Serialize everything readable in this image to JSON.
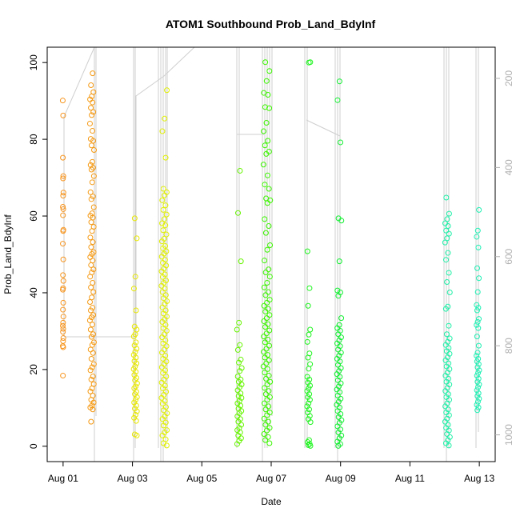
{
  "chart_data": {
    "type": "scatter",
    "title": "ATOM1 Southbound Prob_Land_BdyInf",
    "xlabel": "Date",
    "ylabel": "Prob_Land_BdyInf",
    "x_axis_type": "date",
    "x_ticks": [
      "Aug 01",
      "Aug 03",
      "Aug 05",
      "Aug 07",
      "Aug 09",
      "Aug 11",
      "Aug 13"
    ],
    "x_tick_values": [
      "2021-08-01",
      "2021-08-03",
      "2021-08-05",
      "2021-08-07",
      "2021-08-09",
      "2021-08-11",
      "2021-08-13"
    ],
    "xlim": [
      "2021-07-31T13:00",
      "2021-08-13T11:00"
    ],
    "ylim": [
      -4,
      104
    ],
    "y_ticks": [
      0,
      20,
      40,
      60,
      80,
      100
    ],
    "y_right_label": "",
    "y_right_ticks": [
      200,
      400,
      600,
      800,
      1000
    ],
    "y_right_lim": [
      1060,
      130
    ],
    "y_right_reversed": true,
    "y_right_color": "#b0b0b0",
    "grid": false,
    "legend": "none",
    "marker": "open-circle",
    "series": [
      {
        "color": "#f7941d",
        "x_center": "2021-08-01T00:00",
        "spread_days": 0.01,
        "values": [
          90.1,
          86.2,
          75.2,
          70.4,
          69.8,
          66.1,
          65.3,
          62.4,
          61.8,
          60.2,
          56.4,
          56.1,
          52.8,
          48.7,
          44.6,
          43.1,
          41.2,
          40.8,
          37.4,
          35.6,
          33.8,
          32.2,
          31.4,
          30.6,
          29.8,
          28.2,
          27.4,
          26.1,
          25.8,
          18.4
        ]
      },
      {
        "color": "#f59a14",
        "x_center": "2021-08-01T20:00",
        "spread_days": 0.06,
        "values": [
          97.2,
          94.1,
          92.3,
          91.2,
          90.4,
          89.6,
          88.2,
          87.1,
          86.3,
          84.1,
          82.2,
          80.1,
          79.6,
          78.4,
          77.2,
          74.1,
          73.3,
          72.6,
          72.1,
          70.4,
          68.8,
          66.2,
          65.1,
          64.4,
          62.3,
          60.7,
          60.1,
          59.6,
          58.4,
          57.2,
          56.1,
          54.4,
          53.2,
          51.9,
          50.6,
          50.1,
          49.3,
          48.4,
          47.2,
          46.1,
          45.3,
          44.2,
          42.6,
          41.4,
          40.2,
          38.8,
          37.6,
          36.1,
          35.4,
          34.2,
          33.6,
          32.8,
          31.7,
          30.4,
          29.2,
          28.5,
          27.1,
          26.4,
          25.2,
          24.3,
          22.8,
          21.4,
          20.6,
          19.8,
          18.2,
          17.4,
          16.2,
          15.1,
          14.3,
          13.2,
          12.1,
          11.4,
          10.6,
          10.1,
          9.6,
          6.4
        ]
      },
      {
        "color": "#e8e800",
        "x_center": "2021-08-03T02:00",
        "spread_days": 0.05,
        "values": [
          59.4,
          54.2,
          44.2,
          41.1,
          35.4,
          31.2,
          30.4,
          29.2,
          28.6,
          27.1,
          26.3,
          25.4,
          24.6,
          23.8,
          23.1,
          22.2,
          21.6,
          20.8,
          20.1,
          19.4,
          18.6,
          17.8,
          17.2,
          16.4,
          15.6,
          15.1,
          14.2,
          13.6,
          12.8,
          12.1,
          11.4,
          10.6,
          9.8,
          9.1,
          8.2,
          7.4,
          6.6,
          3.1,
          2.8
        ]
      },
      {
        "color": "#e0f000",
        "x_center": "2021-08-03T22:00",
        "spread_days": 0.08,
        "values": [
          92.8,
          85.4,
          82.1,
          75.2,
          67.1,
          66.2,
          65.4,
          64.1,
          62.8,
          61.6,
          60.4,
          59.2,
          58.1,
          57.6,
          56.3,
          55.2,
          54.1,
          53.4,
          52.2,
          51.6,
          50.8,
          50.2,
          49.4,
          48.6,
          47.8,
          47.1,
          46.3,
          45.6,
          44.8,
          44.1,
          43.2,
          42.6,
          41.8,
          41.1,
          40.2,
          39.4,
          38.6,
          37.8,
          37.1,
          36.2,
          35.4,
          34.6,
          33.8,
          33.1,
          32.4,
          31.6,
          30.8,
          30.1,
          29.2,
          28.4,
          27.6,
          26.8,
          26.1,
          25.2,
          24.4,
          23.6,
          22.8,
          22.1,
          21.4,
          20.6,
          19.8,
          19.1,
          18.2,
          17.4,
          16.6,
          15.8,
          15.1,
          14.2,
          13.4,
          12.6,
          11.8,
          11.1,
          10.2,
          9.4,
          8.6,
          7.8,
          7.1,
          6.2,
          5.4,
          4.2,
          3.6,
          2.8,
          1.8,
          0.8,
          0.2
        ]
      },
      {
        "color": "#66f500",
        "x_center": "2021-08-06T02:00",
        "spread_days": 0.07,
        "values": [
          71.8,
          60.8,
          48.2,
          32.2,
          30.4,
          26.4,
          25.1,
          22.6,
          21.8,
          20.4,
          19.6,
          18.2,
          17.4,
          16.8,
          16.1,
          15.4,
          14.6,
          13.8,
          13.1,
          12.6,
          11.8,
          11.2,
          10.6,
          9.8,
          9.2,
          8.6,
          7.8,
          7.1,
          6.4,
          5.6,
          4.8,
          4.2,
          3.6,
          2.8,
          2.1,
          1.4,
          0.6
        ]
      },
      {
        "color": "#3cf500",
        "x_center": "2021-08-06T21:00",
        "spread_days": 0.1,
        "values": [
          100.1,
          97.8,
          95.2,
          92.1,
          91.6,
          88.4,
          88.1,
          84.3,
          82.1,
          79.6,
          78.4,
          76.8,
          76.2,
          73.4,
          70.6,
          68.2,
          67.1,
          64.6,
          64.1,
          63.4,
          59.2,
          57.4,
          55.6,
          52.4,
          51.2,
          48.4,
          46.1,
          45.3,
          44.2,
          42.6,
          41.4,
          40.2,
          39.4,
          38.2,
          37.4,
          36.6,
          35.8,
          35.1,
          34.2,
          33.4,
          32.6,
          31.8,
          31.1,
          30.2,
          29.4,
          28.6,
          27.8,
          27.1,
          26.2,
          25.4,
          24.6,
          23.8,
          23.1,
          22.4,
          21.6,
          20.8,
          20.1,
          19.2,
          18.4,
          17.6,
          16.8,
          16.1,
          15.2,
          14.4,
          13.6,
          12.8,
          12.1,
          11.2,
          10.4,
          9.6,
          8.8,
          8.1,
          7.2,
          6.4,
          5.6,
          4.8,
          4.1,
          3.2,
          2.4,
          1.6,
          0.8
        ]
      },
      {
        "color": "#1ef51e",
        "x_center": "2021-08-08T02:00",
        "spread_days": 0.05,
        "values": [
          100.1,
          100.0,
          50.8,
          41.2,
          36.6,
          30.4,
          29.1,
          27.2,
          24.2,
          23.1,
          21.4,
          20.2,
          18.1,
          17.4,
          16.6,
          15.8,
          15.1,
          14.4,
          13.6,
          12.8,
          12.1,
          11.2,
          10.4,
          9.6,
          8.8,
          7.9,
          7.1,
          6.3,
          1.6,
          1.1,
          0.6,
          0.3,
          0.1
        ]
      },
      {
        "color": "#10f030",
        "x_center": "2021-08-08T23:00",
        "spread_days": 0.07,
        "values": [
          95.1,
          90.2,
          79.2,
          59.4,
          58.8,
          48.2,
          40.6,
          40.1,
          39.2,
          33.4,
          31.6,
          30.8,
          30.1,
          29.2,
          28.4,
          27.6,
          26.8,
          26.1,
          25.2,
          24.4,
          23.6,
          22.8,
          22.1,
          21.2,
          20.4,
          19.6,
          18.8,
          18.1,
          17.2,
          16.4,
          15.6,
          14.8,
          14.1,
          13.2,
          12.4,
          11.6,
          10.8,
          10.1,
          9.2,
          8.4,
          7.6,
          6.8,
          6.1,
          5.2,
          4.4,
          3.6,
          2.8,
          2.1,
          1.2,
          0.6,
          0.1
        ]
      },
      {
        "color": "#20f0a8",
        "x_center": "2021-08-12T02:00",
        "spread_days": 0.07,
        "values": [
          64.8,
          60.6,
          59.2,
          58.1,
          57.4,
          56.2,
          55.4,
          54.2,
          53.1,
          50.4,
          48.6,
          45.2,
          42.8,
          40.1,
          36.4,
          35.8,
          31.4,
          29.2,
          28.1,
          27.2,
          26.4,
          25.6,
          24.8,
          24.1,
          23.2,
          22.4,
          21.6,
          20.8,
          20.1,
          19.2,
          18.4,
          17.6,
          16.8,
          16.1,
          15.2,
          14.4,
          13.6,
          12.8,
          12.1,
          11.2,
          10.4,
          9.6,
          8.8,
          8.1,
          7.2,
          6.4,
          5.6,
          4.8,
          4.1,
          3.2,
          2.4,
          1.6,
          0.8,
          0.2
        ]
      },
      {
        "color": "#20f0b4",
        "x_center": "2021-08-12T23:00",
        "spread_days": 0.04,
        "values": [
          61.6,
          56.2,
          54.6,
          51.8,
          46.4,
          43.8,
          40.2,
          36.8,
          36.1,
          35.4,
          33.2,
          32.4,
          31.6,
          30.8,
          28.6,
          26.2,
          24.4,
          23.6,
          22.8,
          22.1,
          21.4,
          20.6,
          19.8,
          19.1,
          18.4,
          17.6,
          16.8,
          16.1,
          15.4,
          14.6,
          13.8,
          13.1,
          12.4,
          11.6,
          10.8,
          10.1,
          9.4
        ]
      }
    ]
  }
}
